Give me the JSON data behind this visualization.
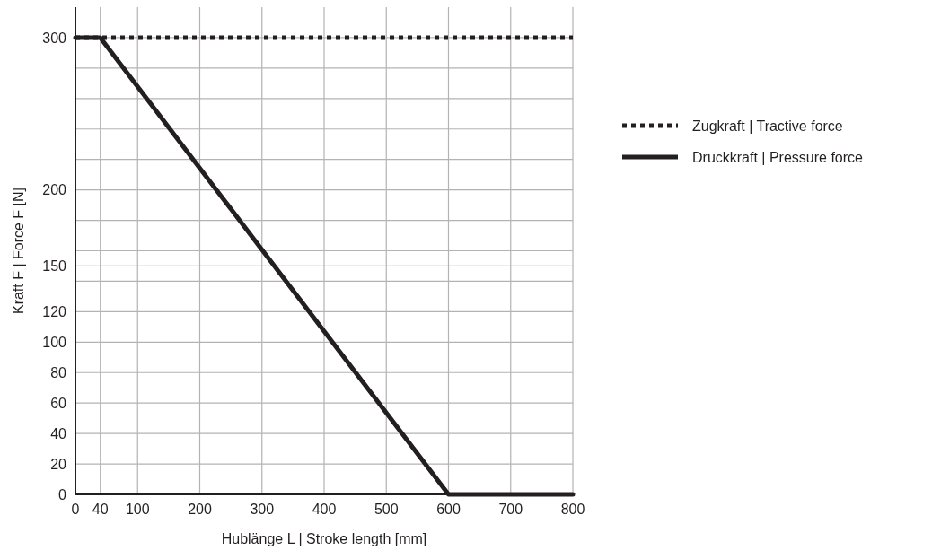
{
  "chart_data": {
    "type": "line",
    "xlabel": "Hublänge L  |  Stroke length [mm]",
    "ylabel": "Kraft F  |  Force F [N]",
    "xlim": [
      0,
      800
    ],
    "xticks": [
      0,
      40,
      100,
      200,
      300,
      400,
      500,
      600,
      700,
      800
    ],
    "ylim": [
      0,
      320
    ],
    "yticks": [
      0,
      20,
      40,
      60,
      80,
      100,
      120,
      {
        "value": 140,
        "label": null
      },
      150,
      {
        "value": 160,
        "label": null
      },
      {
        "value": 180,
        "label": null
      },
      200,
      {
        "value": 220,
        "label": null
      },
      {
        "value": 240,
        "label": null
      },
      {
        "value": 260,
        "label": null
      },
      {
        "value": 280,
        "label": null
      },
      300
    ],
    "grid": true,
    "legend": "right",
    "series": [
      {
        "name": "Zugkraft  |  Tractive force",
        "color": "#231f20",
        "line_style": "dotted",
        "x": [
          0,
          800
        ],
        "values": [
          300,
          300
        ]
      },
      {
        "name": "Druckkraft  |  Pressure force",
        "color": "#231f20",
        "line_style": "solid",
        "x": [
          0,
          40,
          600,
          800
        ],
        "values": [
          300,
          300,
          0,
          0
        ]
      }
    ]
  }
}
